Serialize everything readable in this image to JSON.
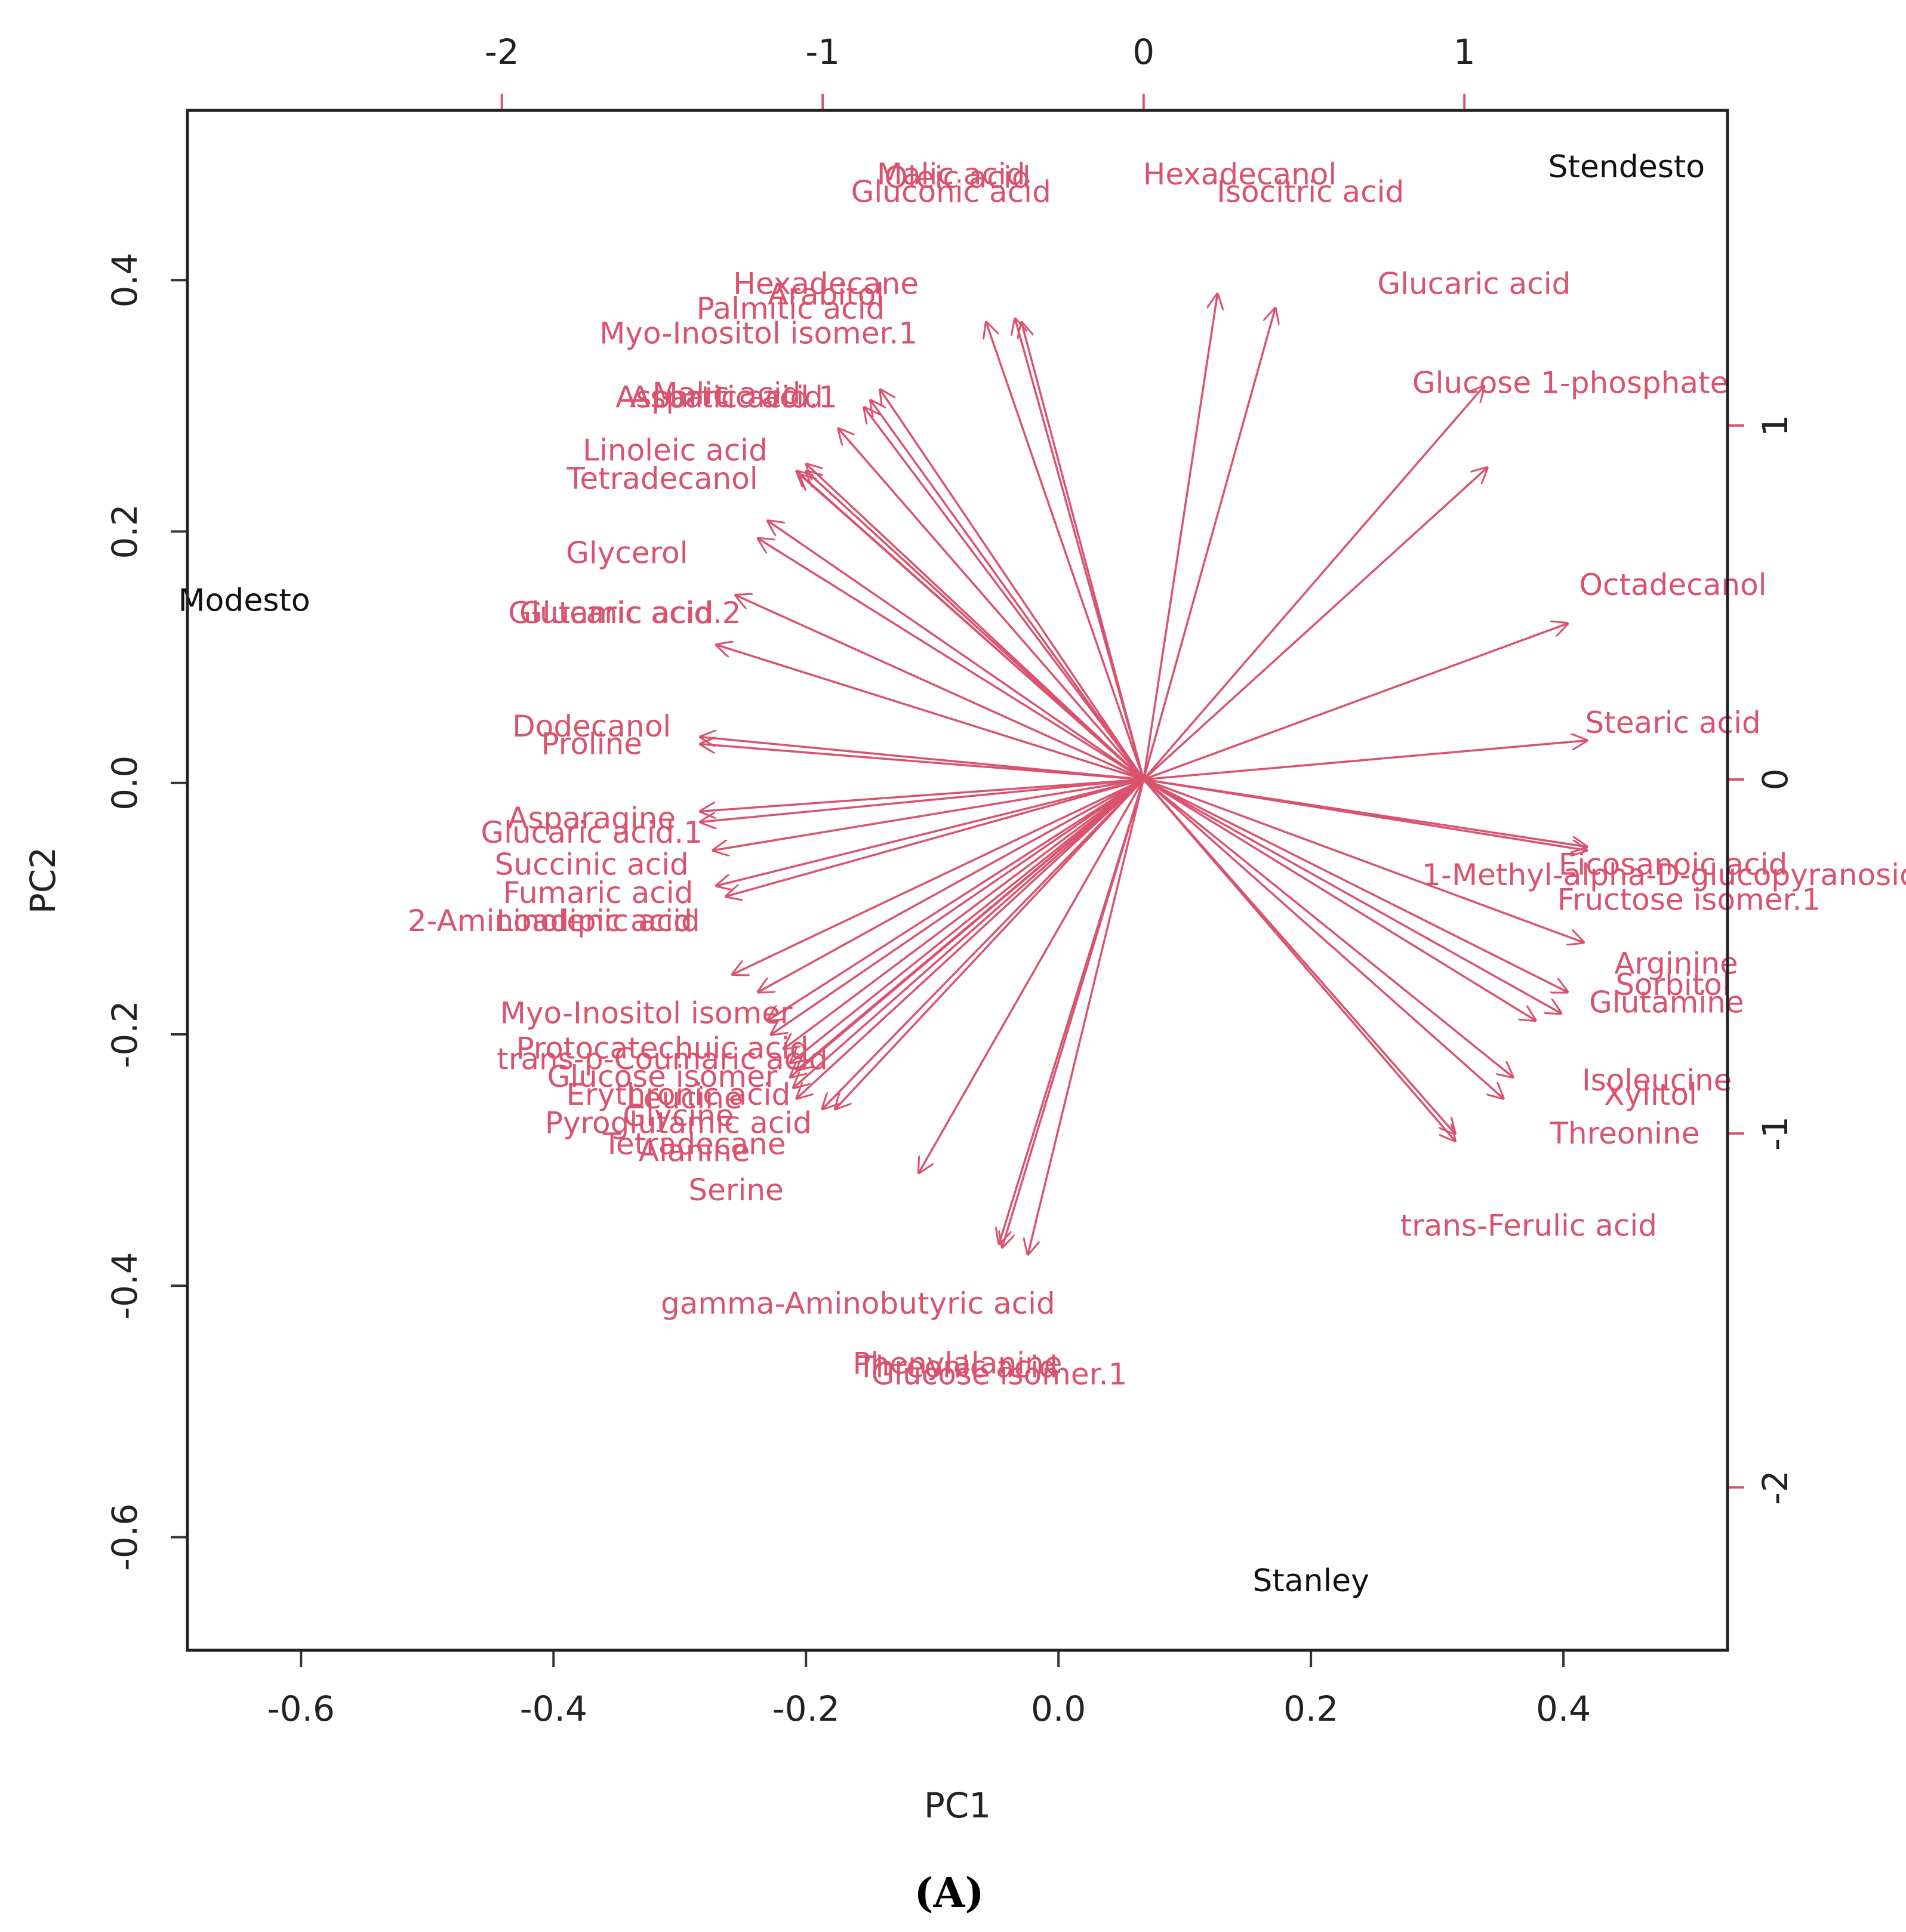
{
  "chart_data": {
    "type": "scatter",
    "subtype": "pca-biplot",
    "xlabel": "PC1",
    "ylabel": "PC2",
    "caption": "(A)",
    "colors": {
      "variables": "#d9536f",
      "samples": "#111111",
      "frame": "#222222"
    },
    "bottom_axis": {
      "range": [
        -0.69,
        0.53
      ],
      "ticks": [
        -0.6,
        -0.4,
        -0.2,
        0.0,
        0.2,
        0.4
      ],
      "tick_labels": [
        "-0.6",
        "-0.4",
        "-0.2",
        "0.0",
        "0.2",
        "0.4"
      ]
    },
    "left_axis": {
      "range": [
        -0.69,
        0.535
      ],
      "ticks": [
        -0.6,
        -0.4,
        -0.2,
        0.0,
        0.2,
        0.4
      ],
      "tick_labels": [
        "-0.6",
        "-0.4",
        "-0.2",
        "0.0",
        "0.2",
        "0.4"
      ]
    },
    "top_axis": {
      "range": [
        -2.98,
        1.82
      ],
      "ticks": [
        -2,
        -1,
        0,
        1
      ],
      "tick_labels": [
        "-2",
        "-1",
        "0",
        "1"
      ]
    },
    "right_axis": {
      "range": [
        -2.46,
        1.89
      ],
      "ticks": [
        1,
        0,
        -1,
        -2
      ],
      "tick_labels": [
        "1",
        "0",
        "-1",
        "-2"
      ]
    },
    "samples": [
      {
        "label": "Stendesto",
        "x": 0.45,
        "y": 0.49
      },
      {
        "label": "Modesto",
        "x": -0.645,
        "y": 0.145
      },
      {
        "label": "Stanley",
        "x": 0.2,
        "y": -0.635
      }
    ],
    "variables": [
      {
        "label": "Oleic acid",
        "arrow": [
          -0.38,
          1.29
        ],
        "text": [
          -0.58,
          1.7
        ]
      },
      {
        "label": "Malic acid",
        "arrow": [
          -0.4,
          1.3
        ],
        "text": [
          -0.6,
          1.71
        ]
      },
      {
        "label": "Gluconic acid",
        "arrow": [
          -0.49,
          1.29
        ],
        "text": [
          -0.6,
          1.66
        ]
      },
      {
        "label": "Hexadecanol",
        "arrow": [
          0.23,
          1.37
        ],
        "text": [
          0.3,
          1.71
        ]
      },
      {
        "label": "Isocitric acid",
        "arrow": [
          0.41,
          1.33
        ],
        "text": [
          0.52,
          1.66
        ]
      },
      {
        "label": "Glucaric acid",
        "arrow": [
          1.06,
          1.11
        ],
        "text": [
          1.03,
          1.4
        ]
      },
      {
        "label": "Glucose 1-phosphate",
        "arrow": [
          1.07,
          0.88
        ],
        "text": [
          1.33,
          1.12
        ]
      },
      {
        "label": "Hexadecane",
        "arrow": [
          -0.82,
          1.1
        ],
        "text": [
          -0.99,
          1.4
        ]
      },
      {
        "label": "Arabitol",
        "arrow": [
          -0.85,
          1.07
        ],
        "text": [
          -0.99,
          1.37
        ]
      },
      {
        "label": "Palmitic acid",
        "arrow": [
          -0.87,
          1.05
        ],
        "text": [
          -1.1,
          1.33
        ]
      },
      {
        "label": "Myo-Inositol isomer.1",
        "arrow": [
          -0.95,
          0.99
        ],
        "text": [
          -1.2,
          1.26
        ]
      },
      {
        "label": "Malic acid",
        "arrow": [
          -1.05,
          0.89
        ],
        "text": [
          -1.3,
          1.09
        ]
      },
      {
        "label": "Aspartic acid",
        "arrow": [
          -1.05,
          0.87
        ],
        "text": [
          -1.3,
          1.08
        ]
      },
      {
        "label": "Linoleic acid",
        "arrow": [
          -1.08,
          0.87
        ],
        "text": [
          -1.46,
          0.93
        ]
      },
      {
        "label": "Tetradecanol",
        "arrow": [
          -1.07,
          0.86
        ],
        "text": [
          -1.5,
          0.85
        ]
      },
      {
        "label": "Glycerol",
        "arrow": [
          -1.17,
          0.73
        ],
        "text": [
          -1.61,
          0.64
        ]
      },
      {
        "label": "Glutamic acid",
        "arrow": [
          -1.2,
          0.68
        ],
        "text": [
          -1.66,
          0.47
        ]
      },
      {
        "label": "Aspartic acid.1",
        "arrow": [
          -1.27,
          0.52
        ],
        "text": [
          -1.3,
          1.08
        ]
      },
      {
        "label": "Glucaric acid.2",
        "arrow": [
          -1.33,
          0.38
        ],
        "text": [
          -1.6,
          0.47
        ]
      },
      {
        "label": "Dodecanol",
        "arrow": [
          -1.38,
          0.12
        ],
        "text": [
          -1.72,
          0.15
        ]
      },
      {
        "label": "Proline",
        "arrow": [
          -1.38,
          0.1
        ],
        "text": [
          -1.72,
          0.1
        ]
      },
      {
        "label": "Asparagine",
        "arrow": [
          -1.38,
          -0.09
        ],
        "text": [
          -1.72,
          -0.11
        ]
      },
      {
        "label": "Glucaric acid.1",
        "arrow": [
          -1.38,
          -0.12
        ],
        "text": [
          -1.72,
          -0.15
        ]
      },
      {
        "label": "Succinic acid",
        "arrow": [
          -1.34,
          -0.2
        ],
        "text": [
          -1.72,
          -0.24
        ]
      },
      {
        "label": "Fumaric acid",
        "arrow": [
          -1.33,
          -0.3
        ],
        "text": [
          -1.7,
          -0.32
        ]
      },
      {
        "label": "2-Aminoadipic acid",
        "arrow": [
          -1.3,
          -0.33
        ],
        "text": [
          -1.85,
          -0.4
        ]
      },
      {
        "label": "Linolenic acid",
        "arrow": [
          -1.28,
          -0.55
        ],
        "text": [
          -1.7,
          -0.4
        ]
      },
      {
        "label": "Myo-Inositol isomer",
        "arrow": [
          -1.2,
          -0.6
        ],
        "text": [
          -1.55,
          -0.66
        ]
      },
      {
        "label": "Protocatechuic acid",
        "arrow": [
          -1.17,
          -0.68
        ],
        "text": [
          -1.5,
          -0.76
        ]
      },
      {
        "label": "trans-p-Coumaric acid",
        "arrow": [
          -1.16,
          -0.72
        ],
        "text": [
          -1.5,
          -0.79
        ]
      },
      {
        "label": "Glucose isomer",
        "arrow": [
          -1.12,
          -0.76
        ],
        "text": [
          -1.5,
          -0.84
        ]
      },
      {
        "label": "Erythronic acid",
        "arrow": [
          -1.1,
          -0.8
        ],
        "text": [
          -1.45,
          -0.89
        ]
      },
      {
        "label": "Leucine",
        "arrow": [
          -1.08,
          -0.82
        ],
        "text": [
          -1.43,
          -0.9
        ]
      },
      {
        "label": "Glycine",
        "arrow": [
          -1.1,
          -0.84
        ],
        "text": [
          -1.45,
          -0.95
        ]
      },
      {
        "label": "Pyroglutamic acid",
        "arrow": [
          -1.09,
          -0.87
        ],
        "text": [
          -1.45,
          -0.97
        ]
      },
      {
        "label": "Tetradecane",
        "arrow": [
          -1.08,
          -0.9
        ],
        "text": [
          -1.4,
          -1.03
        ]
      },
      {
        "label": "Alanine",
        "arrow": [
          -1.0,
          -0.93
        ],
        "text": [
          -1.4,
          -1.05
        ]
      },
      {
        "label": "Serine",
        "arrow": [
          -0.96,
          -0.93
        ],
        "text": [
          -1.27,
          -1.16
        ]
      },
      {
        "label": "gamma-Aminobutyric acid",
        "arrow": [
          -0.7,
          -1.11
        ],
        "text": [
          -0.89,
          -1.48
        ]
      },
      {
        "label": "Phenylalanine",
        "arrow": [
          -0.45,
          -1.31
        ],
        "text": [
          -0.58,
          -1.65
        ]
      },
      {
        "label": "Threonic acid",
        "arrow": [
          -0.44,
          -1.32
        ],
        "text": [
          -0.58,
          -1.66
        ]
      },
      {
        "label": "Glucose isomer.1",
        "arrow": [
          -0.36,
          -1.34
        ],
        "text": [
          -0.45,
          -1.68
        ]
      },
      {
        "label": "Octadecanol",
        "arrow": [
          1.32,
          0.44
        ],
        "text": [
          1.65,
          0.55
        ]
      },
      {
        "label": "Stearic acid",
        "arrow": [
          1.38,
          0.11
        ],
        "text": [
          1.65,
          0.16
        ]
      },
      {
        "label": "Eicosanoic acid",
        "arrow": [
          1.38,
          -0.19
        ],
        "text": [
          1.65,
          -0.24
        ]
      },
      {
        "label": "1-Methyl-alpha-D-glucopyranoside",
        "arrow": [
          1.38,
          -0.2
        ],
        "text": [
          1.67,
          -0.27
        ]
      },
      {
        "label": "Fructose isomer.1",
        "arrow": [
          1.37,
          -0.46
        ],
        "text": [
          1.7,
          -0.34
        ]
      },
      {
        "label": "Arginine",
        "arrow": [
          1.32,
          -0.6
        ],
        "text": [
          1.66,
          -0.52
        ]
      },
      {
        "label": "Sorbitol",
        "arrow": [
          1.3,
          -0.66
        ],
        "text": [
          1.65,
          -0.58
        ]
      },
      {
        "label": "Glutamine",
        "arrow": [
          1.22,
          -0.68
        ],
        "text": [
          1.63,
          -0.63
        ]
      },
      {
        "label": "Isoleucine",
        "arrow": [
          1.15,
          -0.84
        ],
        "text": [
          1.6,
          -0.85
        ]
      },
      {
        "label": "Xylitol",
        "arrow": [
          1.12,
          -0.9
        ],
        "text": [
          1.58,
          -0.89
        ]
      },
      {
        "label": "Threonine",
        "arrow": [
          0.97,
          -1.0
        ],
        "text": [
          1.5,
          -1.0
        ]
      },
      {
        "label": "trans-Ferulic acid",
        "arrow": [
          0.97,
          -1.02
        ],
        "text": [
          1.2,
          -1.26
        ]
      }
    ]
  }
}
